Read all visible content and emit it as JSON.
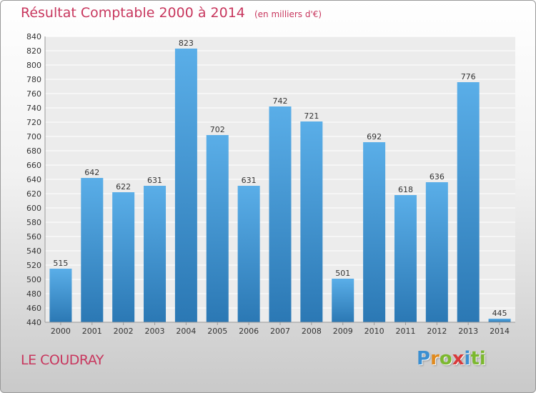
{
  "chart_data": {
    "type": "bar",
    "title": "Résultat Comptable 2000 à 2014",
    "unit_note": "(en milliers d'€)",
    "categories": [
      "2000",
      "2001",
      "2002",
      "2003",
      "2004",
      "2005",
      "2006",
      "2007",
      "2008",
      "2009",
      "2010",
      "2011",
      "2012",
      "2013",
      "2014"
    ],
    "values": [
      515,
      642,
      622,
      631,
      823,
      702,
      631,
      742,
      721,
      501,
      692,
      618,
      636,
      776,
      445
    ],
    "ylim": [
      440,
      840
    ],
    "yticks": [
      440,
      460,
      480,
      500,
      520,
      540,
      560,
      580,
      600,
      620,
      640,
      660,
      680,
      700,
      720,
      740,
      760,
      780,
      800,
      820,
      840
    ],
    "grid": true,
    "bar_color_top": "#5aaee8",
    "bar_color_bottom": "#2b78b4"
  },
  "footer": {
    "commune": "LE COUDRAY",
    "brand": "Proxiti",
    "brand_letters": [
      "P",
      "r",
      "o",
      "x",
      "i",
      "ti"
    ]
  }
}
